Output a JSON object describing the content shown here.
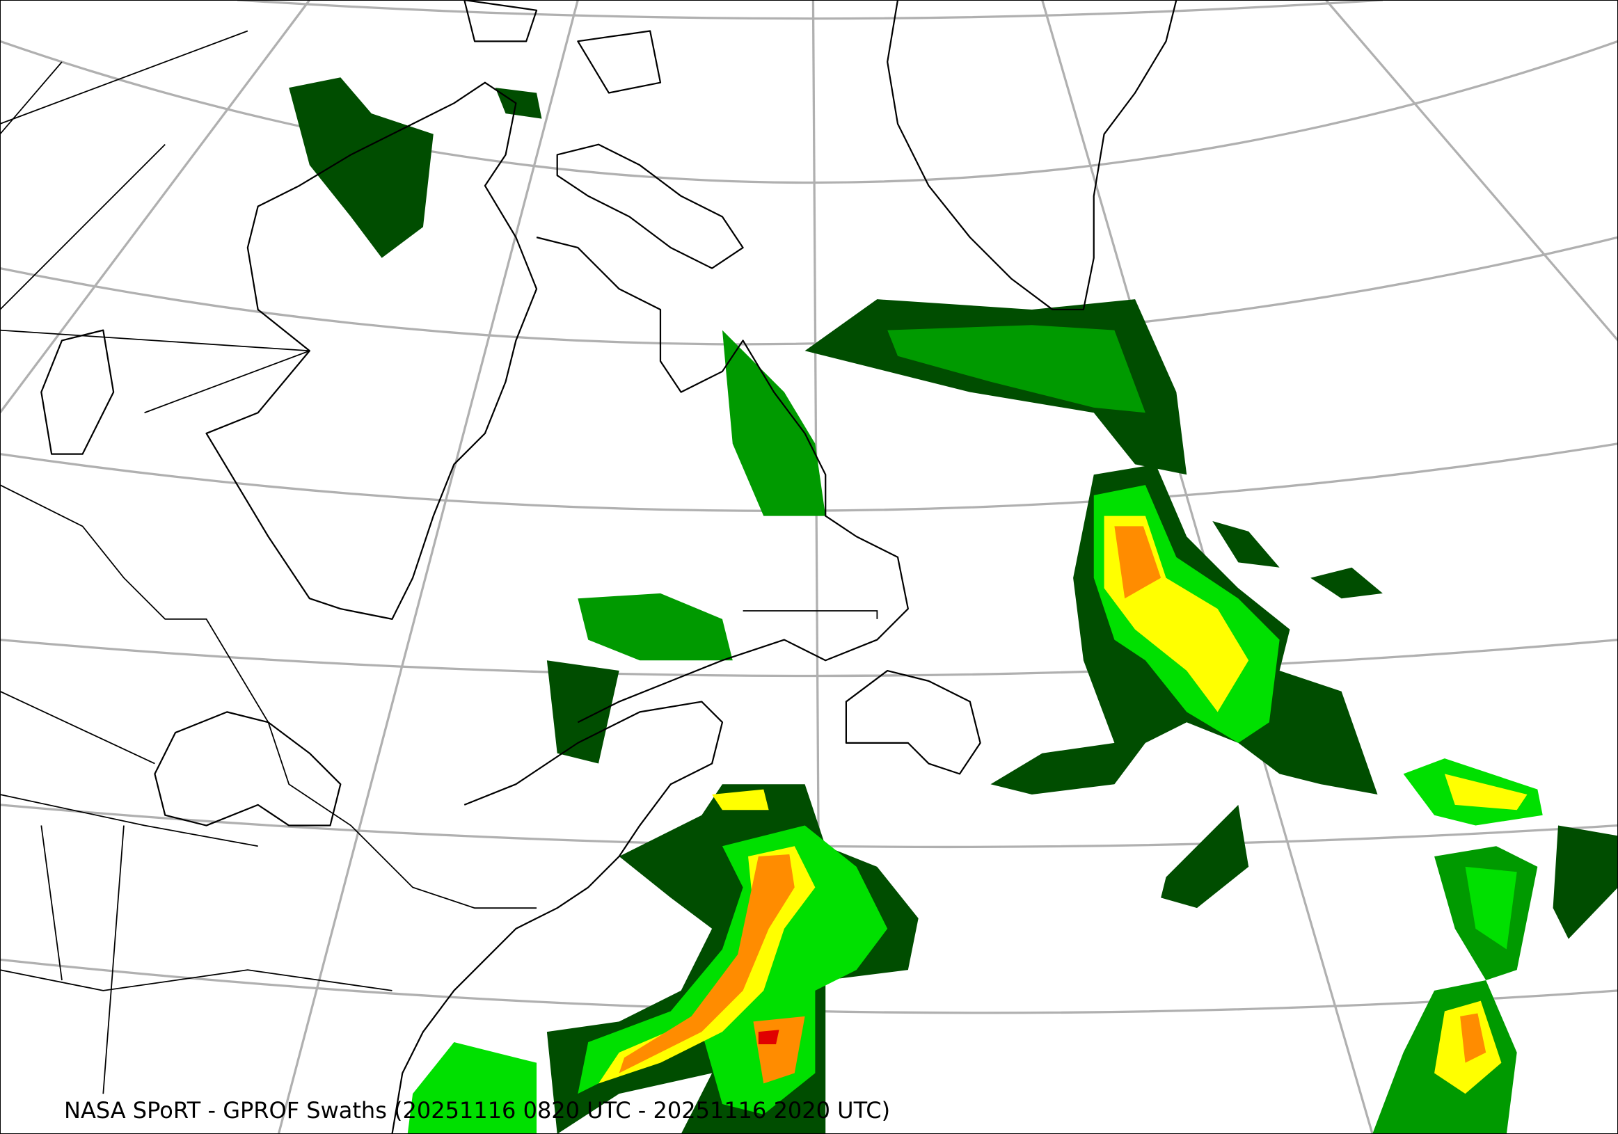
{
  "caption": "NASA SPoRT - GPROF Swaths (20251116 0820 UTC - 20251116 2020 UTC)",
  "map": {
    "projection": "conic",
    "region": "northeastern North America and North Atlantic",
    "precip_colors": {
      "very_light": "#004d00",
      "light": "#009a00",
      "moderate": "#00e000",
      "heavy": "#ffff00",
      "very_heavy": "#ff8c00",
      "extreme": "#e00000"
    },
    "graticule_color": "#b0b0b0",
    "coastline_color": "#000000"
  }
}
